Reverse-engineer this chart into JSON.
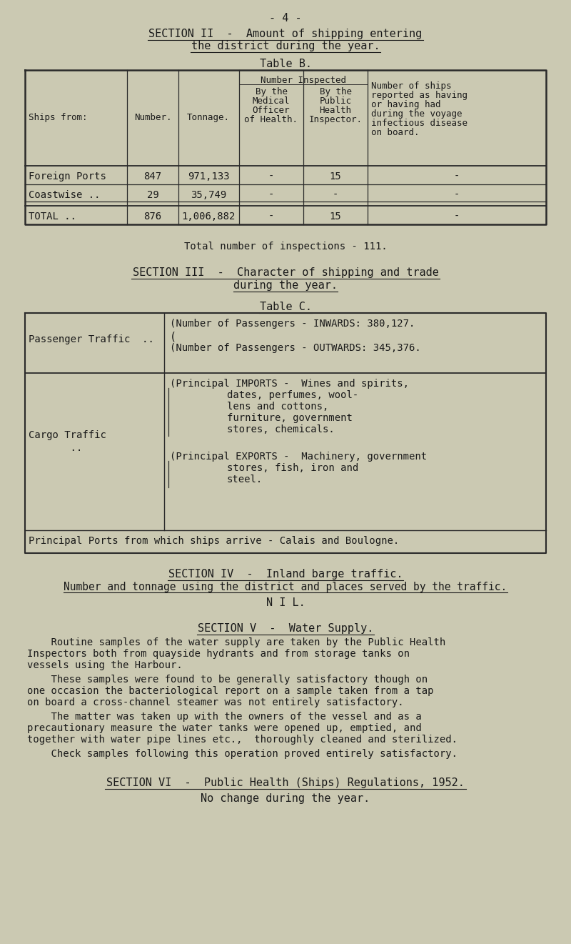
{
  "bg_color": "#cbc9b2",
  "text_color": "#1a1a1a",
  "page_number": "- 4 -",
  "sec2_line1": "SECTION II  -  Amount of shipping entering",
  "sec2_line2": "the district during the year.",
  "table_b_title": "Table B.",
  "tb_rows": [
    [
      "Foreign Ports",
      "847",
      "971,133",
      "-",
      "15",
      "-"
    ],
    [
      "Coastwise ..",
      "29",
      "35,749",
      "-",
      "-",
      "-"
    ],
    [
      "TOTAL ..",
      "876",
      "1,006,882",
      "-",
      "15",
      "-"
    ]
  ],
  "inspections": "Total number of inspections - 111.",
  "sec3_line1": "SECTION III  -  Character of shipping and trade",
  "sec3_line2": "during the year.",
  "table_c_title": "Table C.",
  "pass_inwards": "(Number of Passengers - INWARDS: 380,127.",
  "pass_outwards": "(Number of Passengers - OUTWARDS: 345,376.",
  "imports_lines": [
    "(Principal IMPORTS -  Wines and spirits,",
    "dates, perfumes, wool-",
    "lens and cottons,",
    "furniture, government",
    "stores, chemicals."
  ],
  "exports_lines": [
    "(Principal EXPORTS -  Machinery, government",
    "stores, fish, iron and",
    "steel."
  ],
  "ports_row": "Principal Ports from which ships arrive - Calais and Boulogne.",
  "sec4_title": "SECTION IV  -  Inland barge traffic.",
  "sec4_sub": "Number and tonnage using the district and places served by the traffic.",
  "sec4_nil": "N I L.",
  "sec5_title": "SECTION V  -  Water Supply.",
  "sec5_paras": [
    [
      "    Routine samples of the water supply are taken by the Public Health",
      "Inspectors both from quayside hydrants and from storage tanks on",
      "vessels using the Harbour."
    ],
    [
      "    These samples were found to be generally satisfactory though on",
      "one occasion the bacteriological report on a sample taken from a tap",
      "on board a cross-channel steamer was not entirely satisfactory."
    ],
    [
      "    The matter was taken up with the owners of the vessel and as a",
      "precautionary measure the water tanks were opened up, emptied, and",
      "together with water pipe lines etc.,  thoroughly cleaned and sterilized."
    ],
    [
      "    Check samples following this operation proved entirely satisfactory."
    ]
  ],
  "sec6_title": "SECTION VI  -  Public Health (Ships) Regulations, 1952.",
  "sec6_text": "No change during the year."
}
